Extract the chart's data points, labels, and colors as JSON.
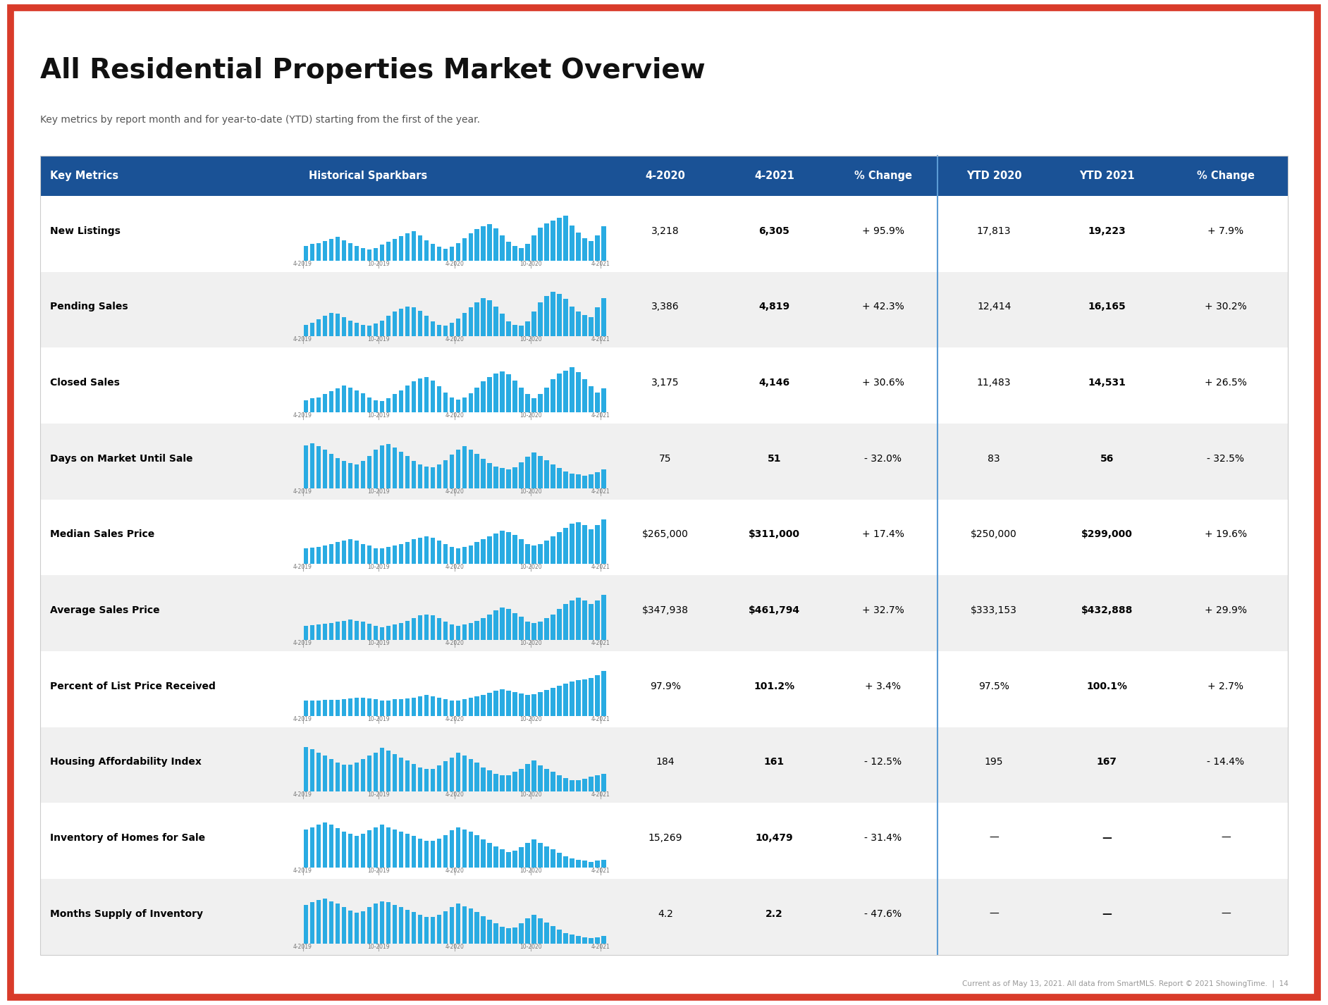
{
  "title": "All Residential Properties Market Overview",
  "subtitle": "Key metrics by report month and for year-to-date (YTD) starting from the first of the year.",
  "footer": "Current as of May 13, 2021. All data from SmartMLS. Report © 2021 ShowingTime.  |  14",
  "header_bg": "#1a5296",
  "header_text_color": "#ffffff",
  "row_bg_odd": "#f0f0f0",
  "row_bg_even": "#ffffff",
  "col_headers": [
    "Key Metrics",
    "Historical Sparkbars",
    "4-2020",
    "4-2021",
    "% Change",
    "YTD 2020",
    "YTD 2021",
    "% Change"
  ],
  "metrics": [
    {
      "name": "New Listings",
      "val_2020": "3,218",
      "val_2021": "6,305",
      "pct_change": "+ 95.9%",
      "ytd_2020": "17,813",
      "ytd_2021": "19,223",
      "ytd_pct": "+ 7.9%",
      "sparkbar_type": "new_listings"
    },
    {
      "name": "Pending Sales",
      "val_2020": "3,386",
      "val_2021": "4,819",
      "pct_change": "+ 42.3%",
      "ytd_2020": "12,414",
      "ytd_2021": "16,165",
      "ytd_pct": "+ 30.2%",
      "sparkbar_type": "pending_sales"
    },
    {
      "name": "Closed Sales",
      "val_2020": "3,175",
      "val_2021": "4,146",
      "pct_change": "+ 30.6%",
      "ytd_2020": "11,483",
      "ytd_2021": "14,531",
      "ytd_pct": "+ 26.5%",
      "sparkbar_type": "closed_sales"
    },
    {
      "name": "Days on Market Until Sale",
      "val_2020": "75",
      "val_2021": "51",
      "pct_change": "- 32.0%",
      "ytd_2020": "83",
      "ytd_2021": "56",
      "ytd_pct": "- 32.5%",
      "sparkbar_type": "days_on_market"
    },
    {
      "name": "Median Sales Price",
      "val_2020": "$265,000",
      "val_2021": "$311,000",
      "pct_change": "+ 17.4%",
      "ytd_2020": "$250,000",
      "ytd_2021": "$299,000",
      "ytd_pct": "+ 19.6%",
      "sparkbar_type": "median_price"
    },
    {
      "name": "Average Sales Price",
      "val_2020": "$347,938",
      "val_2021": "$461,794",
      "pct_change": "+ 32.7%",
      "ytd_2020": "$333,153",
      "ytd_2021": "$432,888",
      "ytd_pct": "+ 29.9%",
      "sparkbar_type": "avg_price"
    },
    {
      "name": "Percent of List Price Received",
      "val_2020": "97.9%",
      "val_2021": "101.2%",
      "pct_change": "+ 3.4%",
      "ytd_2020": "97.5%",
      "ytd_2021": "100.1%",
      "ytd_pct": "+ 2.7%",
      "sparkbar_type": "pct_list"
    },
    {
      "name": "Housing Affordability Index",
      "val_2020": "184",
      "val_2021": "161",
      "pct_change": "- 12.5%",
      "ytd_2020": "195",
      "ytd_2021": "167",
      "ytd_pct": "- 14.4%",
      "sparkbar_type": "affordability"
    },
    {
      "name": "Inventory of Homes for Sale",
      "val_2020": "15,269",
      "val_2021": "10,479",
      "pct_change": "- 31.4%",
      "ytd_2020": "—",
      "ytd_2021": "—",
      "ytd_pct": "—",
      "sparkbar_type": "inventory"
    },
    {
      "name": "Months Supply of Inventory",
      "val_2020": "4.2",
      "val_2021": "2.2",
      "pct_change": "- 47.6%",
      "ytd_2020": "—",
      "ytd_2021": "—",
      "ytd_pct": "—",
      "sparkbar_type": "months_supply"
    }
  ],
  "sparkbar_color": "#29abe2",
  "sparkbar_data": {
    "new_listings": [
      30,
      34,
      36,
      40,
      44,
      48,
      42,
      36,
      30,
      26,
      22,
      26,
      32,
      38,
      44,
      50,
      56,
      60,
      52,
      42,
      34,
      28,
      24,
      28,
      36,
      46,
      56,
      64,
      70,
      74,
      66,
      52,
      38,
      30,
      26,
      34,
      52,
      68,
      76,
      82,
      88,
      92,
      72,
      58,
      46,
      40,
      52,
      70
    ],
    "pending_sales": [
      22,
      26,
      32,
      38,
      44,
      42,
      36,
      30,
      26,
      22,
      20,
      24,
      30,
      38,
      46,
      52,
      56,
      54,
      48,
      38,
      28,
      22,
      20,
      26,
      34,
      44,
      54,
      64,
      72,
      68,
      56,
      42,
      28,
      22,
      20,
      28,
      46,
      64,
      76,
      84,
      80,
      70,
      56,
      46,
      40,
      36,
      54,
      72
    ],
    "closed_sales": [
      24,
      28,
      30,
      36,
      42,
      48,
      54,
      50,
      44,
      38,
      30,
      24,
      22,
      28,
      36,
      44,
      54,
      62,
      68,
      70,
      64,
      52,
      40,
      30,
      26,
      30,
      38,
      50,
      62,
      70,
      78,
      82,
      76,
      64,
      50,
      36,
      28,
      36,
      50,
      66,
      78,
      84,
      90,
      80,
      66,
      52,
      40,
      48
    ],
    "days_on_market": [
      82,
      86,
      80,
      74,
      66,
      58,
      52,
      48,
      46,
      52,
      62,
      74,
      82,
      84,
      78,
      70,
      62,
      52,
      46,
      42,
      40,
      46,
      54,
      64,
      74,
      80,
      74,
      66,
      56,
      48,
      42,
      38,
      36,
      40,
      50,
      60,
      68,
      62,
      54,
      46,
      38,
      32,
      28,
      26,
      24,
      26,
      30,
      36
    ],
    "median_price": [
      22,
      23,
      24,
      26,
      28,
      30,
      32,
      34,
      32,
      28,
      26,
      22,
      22,
      24,
      26,
      28,
      30,
      34,
      36,
      38,
      36,
      32,
      28,
      24,
      22,
      24,
      26,
      30,
      34,
      38,
      42,
      46,
      44,
      40,
      34,
      28,
      26,
      28,
      32,
      38,
      44,
      50,
      56,
      58,
      54,
      48,
      54,
      62
    ],
    "avg_price": [
      22,
      23,
      24,
      25,
      26,
      28,
      30,
      32,
      30,
      28,
      25,
      22,
      20,
      22,
      24,
      26,
      30,
      34,
      38,
      40,
      38,
      34,
      28,
      24,
      22,
      24,
      26,
      30,
      34,
      40,
      46,
      50,
      48,
      42,
      36,
      28,
      26,
      28,
      34,
      40,
      48,
      56,
      62,
      66,
      62,
      56,
      62,
      70
    ],
    "pct_list": [
      22,
      22,
      22,
      23,
      23,
      23,
      24,
      25,
      26,
      26,
      25,
      24,
      22,
      22,
      24,
      24,
      25,
      26,
      28,
      30,
      28,
      26,
      24,
      22,
      22,
      24,
      26,
      28,
      30,
      33,
      36,
      38,
      36,
      34,
      32,
      30,
      31,
      34,
      37,
      40,
      43,
      46,
      49,
      51,
      52,
      54,
      58,
      64
    ],
    "affordability": [
      55,
      52,
      48,
      44,
      40,
      36,
      33,
      33,
      36,
      40,
      44,
      48,
      54,
      50,
      46,
      42,
      38,
      34,
      30,
      28,
      28,
      32,
      37,
      42,
      48,
      44,
      40,
      36,
      30,
      26,
      22,
      20,
      20,
      24,
      28,
      34,
      38,
      32,
      28,
      24,
      20,
      17,
      14,
      14,
      16,
      18,
      20,
      22
    ],
    "inventory": [
      68,
      72,
      76,
      80,
      76,
      70,
      64,
      60,
      56,
      60,
      66,
      72,
      76,
      72,
      68,
      64,
      60,
      56,
      52,
      48,
      48,
      52,
      58,
      66,
      72,
      68,
      64,
      58,
      50,
      44,
      38,
      32,
      28,
      30,
      36,
      44,
      50,
      44,
      38,
      32,
      26,
      20,
      16,
      14,
      12,
      10,
      12,
      14
    ],
    "months_supply": [
      62,
      66,
      70,
      72,
      68,
      64,
      58,
      53,
      49,
      52,
      58,
      64,
      68,
      66,
      62,
      58,
      54,
      50,
      46,
      42,
      42,
      46,
      52,
      58,
      64,
      60,
      56,
      50,
      44,
      38,
      32,
      27,
      24,
      26,
      32,
      40,
      46,
      40,
      34,
      28,
      22,
      17,
      14,
      12,
      10,
      8,
      10,
      12
    ]
  },
  "border_color": "#d93b2a",
  "divider_color": "#5b9bd5",
  "title_color": "#111111",
  "subtitle_color": "#555555",
  "spark_label_color": "#777777",
  "spark_tick_color": "#aaaaaa"
}
